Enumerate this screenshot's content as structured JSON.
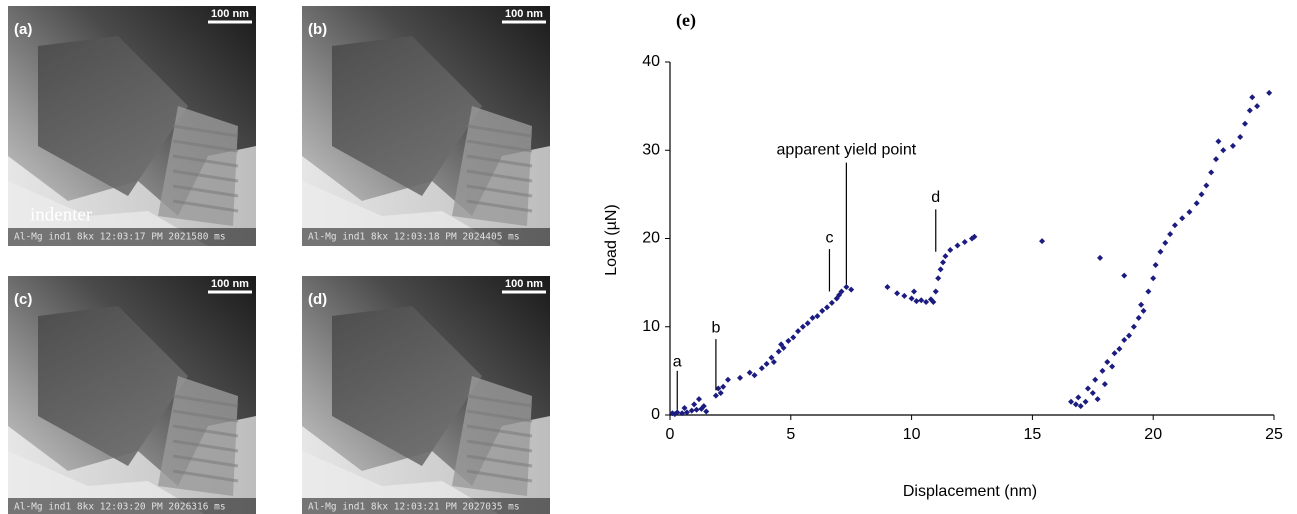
{
  "panels": [
    {
      "label": "(a)",
      "scale_bar": "100 nm",
      "caption": "Al-Mg ind1 8kx  12:03:17 PM  2021580 ms",
      "note": "indenter"
    },
    {
      "label": "(b)",
      "scale_bar": "100 nm",
      "caption": "Al-Mg ind1 8kx  12:03:18 PM  2024405 ms"
    },
    {
      "label": "(c)",
      "scale_bar": "100 nm",
      "caption": "Al-Mg ind1 8kx  12:03:20 PM  2026316 ms"
    },
    {
      "label": "(d)",
      "scale_bar": "100 nm",
      "caption": "Al-Mg ind1 8kx  12:03:21 PM  2027035 ms"
    }
  ],
  "chart_data": {
    "type": "scatter",
    "title": "(e)",
    "x_label": "Displacement (nm)",
    "y_label": "Load (µN)",
    "xlim": [
      0,
      25
    ],
    "ylim": [
      0,
      40
    ],
    "xticks": [
      0,
      5,
      10,
      15,
      20,
      25
    ],
    "yticks": [
      0,
      10,
      20,
      30,
      40
    ],
    "color": "#1c1c80",
    "x": [
      0.1,
      0.2,
      0.3,
      0.5,
      0.6,
      0.7,
      0.9,
      1.0,
      1.1,
      1.2,
      1.3,
      1.4,
      1.5,
      1.9,
      2.0,
      2.1,
      2.2,
      2.4,
      2.9,
      3.3,
      3.5,
      3.8,
      4.0,
      4.2,
      4.3,
      4.5,
      4.6,
      4.7,
      4.9,
      5.1,
      5.3,
      5.5,
      5.7,
      5.9,
      6.1,
      6.3,
      6.5,
      6.7,
      6.9,
      7.0,
      7.1,
      7.3,
      7.5,
      9.0,
      9.4,
      9.7,
      10.0,
      10.1,
      10.2,
      10.4,
      10.6,
      10.8,
      10.9,
      11.0,
      11.1,
      11.2,
      11.3,
      11.4,
      11.6,
      11.9,
      12.2,
      12.5,
      12.6,
      15.4,
      17.8,
      18.8,
      16.6,
      16.8,
      16.9,
      17.0,
      17.2,
      17.3,
      17.5,
      17.6,
      17.7,
      17.9,
      18.0,
      18.1,
      18.3,
      18.4,
      18.6,
      18.8,
      19.0,
      19.2,
      19.4,
      19.5,
      19.6,
      19.8,
      20.0,
      20.1,
      20.3,
      20.5,
      20.7,
      20.9,
      21.2,
      21.5,
      21.8,
      22.0,
      22.2,
      22.4,
      22.6,
      22.7,
      22.9,
      23.3,
      23.6,
      23.8,
      24.0,
      24.1,
      24.3,
      24.8
    ],
    "y": [
      0.2,
      0.1,
      0.3,
      0.2,
      0.8,
      0.3,
      0.5,
      1.2,
      0.6,
      1.8,
      0.7,
      1.0,
      0.4,
      2.2,
      3.0,
      2.5,
      3.2,
      4.0,
      4.2,
      4.8,
      4.5,
      5.3,
      5.8,
      6.5,
      6.0,
      7.2,
      8.0,
      7.6,
      8.4,
      8.8,
      9.5,
      10.0,
      10.4,
      11.0,
      11.2,
      11.8,
      12.2,
      12.7,
      13.2,
      13.6,
      14.0,
      14.5,
      14.2,
      14.5,
      13.8,
      13.5,
      13.2,
      14.0,
      12.9,
      13.0,
      12.8,
      13.1,
      12.8,
      14.0,
      15.5,
      16.5,
      17.3,
      18.0,
      18.7,
      19.2,
      19.6,
      20.0,
      20.2,
      19.7,
      17.8,
      15.8,
      1.5,
      1.2,
      2.0,
      1.0,
      1.5,
      3.0,
      2.5,
      4.0,
      1.8,
      5.0,
      3.5,
      6.0,
      5.5,
      7.0,
      7.5,
      8.5,
      9.0,
      10.0,
      11.0,
      12.5,
      11.8,
      14.0,
      15.5,
      17.0,
      18.5,
      19.5,
      20.5,
      21.5,
      22.3,
      23.0,
      24.0,
      25.0,
      26.0,
      27.5,
      29.0,
      31.0,
      30.0,
      30.5,
      31.5,
      33.0,
      34.5,
      36.0,
      35.0,
      36.5
    ],
    "annotations": [
      {
        "text": "a",
        "x": 0.3,
        "y": 6.0,
        "line_y": [
          0.6,
          5.0
        ]
      },
      {
        "text": "b",
        "x": 1.9,
        "y": 9.8,
        "line_y": [
          2.8,
          8.6
        ]
      },
      {
        "text": "c",
        "x": 6.6,
        "y": 20.0,
        "line_y": [
          14.0,
          18.8
        ]
      },
      {
        "text": "d",
        "x": 11.0,
        "y": 24.6,
        "line_y": [
          18.5,
          23.3
        ]
      },
      {
        "text": "apparent yield point",
        "x": 7.3,
        "y": 30.0,
        "line_y": [
          14.8,
          28.6
        ]
      }
    ]
  }
}
